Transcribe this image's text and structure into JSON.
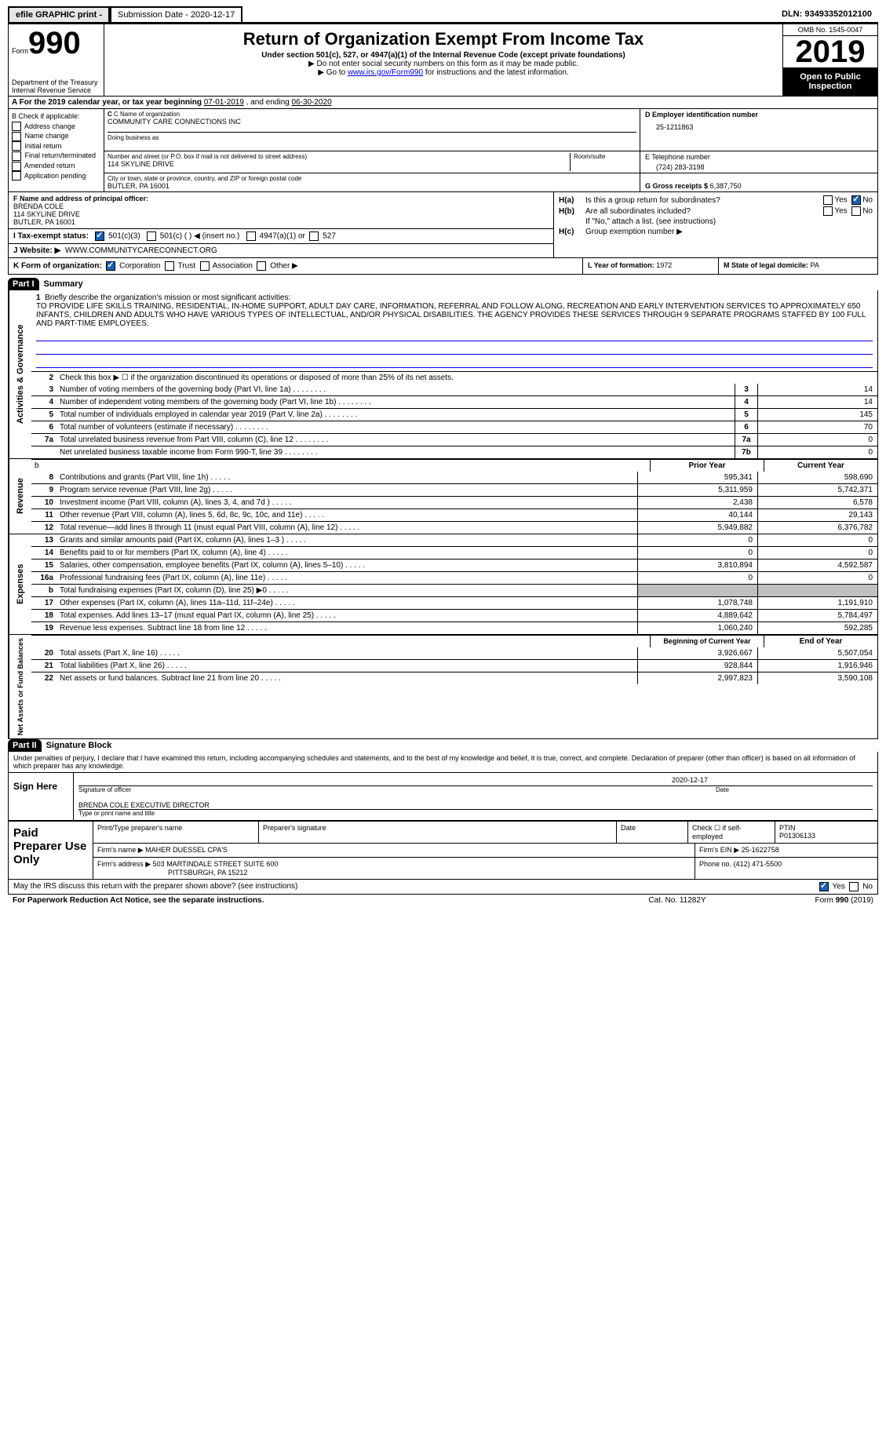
{
  "topbar": {
    "efile": "efile GRAPHIC print -",
    "submission": "Submission Date - 2020-12-17",
    "dln": "DLN: 93493352012100"
  },
  "header": {
    "form_word": "Form",
    "form_num": "990",
    "dept": "Department of the Treasury\nInternal Revenue Service",
    "title": "Return of Organization Exempt From Income Tax",
    "sub1": "Under section 501(c), 527, or 4947(a)(1) of the Internal Revenue Code (except private foundations)",
    "sub2a": "▶ Do not enter social security numbers on this form as it may be made public.",
    "sub2b_pre": "▶ Go to ",
    "sub2b_link": "www.irs.gov/Form990",
    "sub2b_post": " for instructions and the latest information.",
    "omb": "OMB No. 1545-0047",
    "year": "2019",
    "otp": "Open to Public Inspection"
  },
  "rowA": {
    "label": "A For the 2019 calendar year, or tax year beginning ",
    "begin": "07-01-2019",
    "mid": " , and ending ",
    "end": "06-30-2020"
  },
  "boxB": {
    "title": "B Check if applicable:",
    "items": [
      "Address change",
      "Name change",
      "Initial return",
      "Final return/terminated",
      "Amended return",
      "Application pending"
    ]
  },
  "boxC": {
    "name_lbl": "C Name of organization",
    "name": "COMMUNITY CARE CONNECTIONS INC",
    "dba_lbl": "Doing business as",
    "addr_lbl": "Number and street (or P.O. box if mail is not delivered to street address)",
    "addr": "114 SKYLINE DRIVE",
    "room_lbl": "Room/suite",
    "city_lbl": "City or town, state or province, country, and ZIP or foreign postal code",
    "city": "BUTLER, PA  16001"
  },
  "boxD": {
    "lbl": "D Employer identification number",
    "val": "25-1211863"
  },
  "boxE": {
    "lbl": "E Telephone number",
    "val": "(724) 283-3198"
  },
  "boxG": {
    "lbl": "G Gross receipts $",
    "val": "6,387,750"
  },
  "boxF": {
    "lbl": "F Name and address of principal officer:",
    "name": "BRENDA COLE",
    "addr1": "114 SKYLINE DRIVE",
    "addr2": "BUTLER, PA  16001"
  },
  "boxH": {
    "a_lbl": "H(a)",
    "a_txt": "Is this a group return for subordinates?",
    "a_yes": "Yes",
    "a_no": "No",
    "b_lbl": "H(b)",
    "b_txt": "Are all subordinates included?",
    "b_yes": "Yes",
    "b_no": "No",
    "b_note": "If \"No,\" attach a list. (see instructions)",
    "c_lbl": "H(c)",
    "c_txt": "Group exemption number ▶"
  },
  "boxI": {
    "lbl": "I   Tax-exempt status:",
    "o1": "501(c)(3)",
    "o2": "501(c) (  ) ◀ (insert no.)",
    "o3": "4947(a)(1) or",
    "o4": "527"
  },
  "boxJ": {
    "lbl": "J   Website: ▶",
    "val": "WWW.COMMUNITYCARECONNECT.ORG"
  },
  "boxK": {
    "lbl": "K Form of organization:",
    "o1": "Corporation",
    "o2": "Trust",
    "o3": "Association",
    "o4": "Other ▶"
  },
  "boxL": {
    "lbl": "L Year of formation:",
    "val": "1972"
  },
  "boxM": {
    "lbl": "M State of legal domicile:",
    "val": "PA"
  },
  "part1": {
    "hdr": "Part I",
    "title": "Summary",
    "vtab1": "Activities & Governance",
    "vtab2": "Revenue",
    "vtab3": "Expenses",
    "vtab4": "Net Assets or Fund Balances",
    "l1_lbl": "Briefly describe the organization's mission or most significant activities:",
    "l1_txt": "TO PROVIDE LIFE SKILLS TRAINING, RESIDENTIAL, IN-HOME SUPPORT, ADULT DAY CARE, INFORMATION, REFERRAL AND FOLLOW ALONG, RECREATION AND EARLY INTERVENTION SERVICES TO APPROXIMATELY 650 INFANTS, CHILDREN AND ADULTS WHO HAVE VARIOUS TYPES OF INTELLECTUAL, AND/OR PHYSICAL DISABILITIES. THE AGENCY PROVIDES THESE SERVICES THROUGH 9 SEPARATE PROGRAMS STAFFED BY 100 FULL AND PART-TIME EMPLOYEES.",
    "l2": "Check this box ▶ ☐ if the organization discontinued its operations or disposed of more than 25% of its net assets.",
    "lines_ag": [
      {
        "n": "3",
        "t": "Number of voting members of the governing body (Part VI, line 1a)",
        "nb": "3",
        "v": "14"
      },
      {
        "n": "4",
        "t": "Number of independent voting members of the governing body (Part VI, line 1b)",
        "nb": "4",
        "v": "14"
      },
      {
        "n": "5",
        "t": "Total number of individuals employed in calendar year 2019 (Part V, line 2a)",
        "nb": "5",
        "v": "145"
      },
      {
        "n": "6",
        "t": "Total number of volunteers (estimate if necessary)",
        "nb": "6",
        "v": "70"
      },
      {
        "n": "7a",
        "t": "Total unrelated business revenue from Part VIII, column (C), line 12",
        "nb": "7a",
        "v": "0"
      },
      {
        "n": "",
        "t": "Net unrelated business taxable income from Form 990-T, line 39",
        "nb": "7b",
        "v": "0"
      }
    ],
    "hdr_prior": "Prior Year",
    "hdr_curr": "Current Year",
    "lines_rev": [
      {
        "n": "8",
        "t": "Contributions and grants (Part VIII, line 1h)",
        "p": "595,341",
        "c": "598,690"
      },
      {
        "n": "9",
        "t": "Program service revenue (Part VIII, line 2g)",
        "p": "5,311,959",
        "c": "5,742,371"
      },
      {
        "n": "10",
        "t": "Investment income (Part VIII, column (A), lines 3, 4, and 7d )",
        "p": "2,438",
        "c": "6,578"
      },
      {
        "n": "11",
        "t": "Other revenue (Part VIII, column (A), lines 5, 6d, 8c, 9c, 10c, and 11e)",
        "p": "40,144",
        "c": "29,143"
      },
      {
        "n": "12",
        "t": "Total revenue—add lines 8 through 11 (must equal Part VIII, column (A), line 12)",
        "p": "5,949,882",
        "c": "6,376,782"
      }
    ],
    "lines_exp": [
      {
        "n": "13",
        "t": "Grants and similar amounts paid (Part IX, column (A), lines 1–3 )",
        "p": "0",
        "c": "0"
      },
      {
        "n": "14",
        "t": "Benefits paid to or for members (Part IX, column (A), line 4)",
        "p": "0",
        "c": "0"
      },
      {
        "n": "15",
        "t": "Salaries, other compensation, employee benefits (Part IX, column (A), lines 5–10)",
        "p": "3,810,894",
        "c": "4,592,587"
      },
      {
        "n": "16a",
        "t": "Professional fundraising fees (Part IX, column (A), line 11e)",
        "p": "0",
        "c": "0"
      },
      {
        "n": "b",
        "t": "Total fundraising expenses (Part IX, column (D), line 25) ▶0",
        "p": "",
        "c": "",
        "grey": true
      },
      {
        "n": "17",
        "t": "Other expenses (Part IX, column (A), lines 11a–11d, 11f–24e)",
        "p": "1,078,748",
        "c": "1,191,910"
      },
      {
        "n": "18",
        "t": "Total expenses. Add lines 13–17 (must equal Part IX, column (A), line 25)",
        "p": "4,889,642",
        "c": "5,784,497"
      },
      {
        "n": "19",
        "t": "Revenue less expenses. Subtract line 18 from line 12",
        "p": "1,060,240",
        "c": "592,285"
      }
    ],
    "hdr_boy": "Beginning of Current Year",
    "hdr_eoy": "End of Year",
    "lines_net": [
      {
        "n": "20",
        "t": "Total assets (Part X, line 16)",
        "p": "3,926,667",
        "c": "5,507,054"
      },
      {
        "n": "21",
        "t": "Total liabilities (Part X, line 26)",
        "p": "928,844",
        "c": "1,916,946"
      },
      {
        "n": "22",
        "t": "Net assets or fund balances. Subtract line 21 from line 20",
        "p": "2,997,823",
        "c": "3,590,108"
      }
    ]
  },
  "part2": {
    "hdr": "Part II",
    "title": "Signature Block",
    "decl": "Under penalties of perjury, I declare that I have examined this return, including accompanying schedules and statements, and to the best of my knowledge and belief, it is true, correct, and complete. Declaration of preparer (other than officer) is based on all information of which preparer has any knowledge.",
    "sign_here": "Sign Here",
    "sig_lbl": "Signature of officer",
    "date_lbl": "Date",
    "date_val": "2020-12-17",
    "name_lbl": "Type or print name and title",
    "name_val": "BRENDA COLE  EXECUTIVE DIRECTOR",
    "paid": "Paid Preparer Use Only",
    "p1": "Print/Type preparer's name",
    "p2": "Preparer's signature",
    "p3": "Date",
    "p4": "Check ☐ if self-employed",
    "p5": "PTIN",
    "p5v": "P01306133",
    "firm_lbl": "Firm's name   ▶",
    "firm": "MAHER DUESSEL CPA'S",
    "ein_lbl": "Firm's EIN ▶",
    "ein": "25-1622758",
    "addr_lbl": "Firm's address ▶",
    "addr1": "503 MARTINDALE STREET SUITE 600",
    "addr2": "PITTSBURGH, PA  15212",
    "phone_lbl": "Phone no.",
    "phone": "(412) 471-5500",
    "may": "May the IRS discuss this return with the preparer shown above? (see instructions)",
    "yes": "Yes",
    "no": "No"
  },
  "bottom": {
    "pra": "For Paperwork Reduction Act Notice, see the separate instructions.",
    "cat": "Cat. No. 11282Y",
    "form": "Form 990 (2019)"
  },
  "colors": {
    "blue": "#1a5fb4",
    "link": "#0000ee",
    "grey": "#bfbfbf"
  }
}
